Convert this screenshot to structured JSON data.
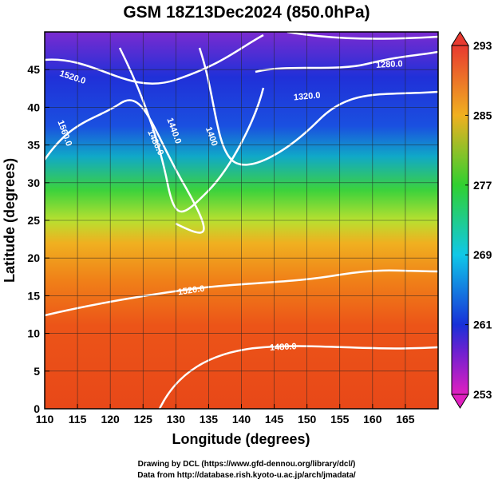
{
  "title": "GSM 18Z13Dec2024 (850.0hPa)",
  "x_axis": {
    "label": "Longitude (degrees)",
    "lim": [
      110,
      170
    ],
    "ticks": [
      110,
      115,
      120,
      125,
      130,
      135,
      140,
      145,
      150,
      155,
      160,
      165
    ]
  },
  "y_axis": {
    "label": "Latitude  (degrees)",
    "lim": [
      0,
      50
    ],
    "ticks": [
      0,
      5,
      10,
      15,
      20,
      25,
      30,
      35,
      40,
      45
    ]
  },
  "colorbar": {
    "lim": [
      253,
      293
    ],
    "ticks": [
      253,
      261,
      269,
      277,
      285,
      293
    ]
  },
  "contour_labels": [
    {
      "value": 1520,
      "label": "1520.0"
    },
    {
      "value": 1560,
      "label": "1560.0"
    },
    {
      "value": 1480,
      "label": "1480.0"
    },
    {
      "value": 1440,
      "label": "1440.0"
    },
    {
      "value": 1400,
      "label": "1400"
    },
    {
      "value": 1320,
      "label": "1320.0"
    },
    {
      "value": 1280,
      "label": "1280.0"
    },
    {
      "value": 1520,
      "label": "1520.0"
    },
    {
      "value": 1480,
      "label": "1480.0"
    }
  ],
  "credits": [
    "Drawing by DCL (https://www.gfd-dennou.org/library/dcl/)",
    "Data from http://database.rish.kyoto-u.ac.jp/arch/jmadata/"
  ]
}
